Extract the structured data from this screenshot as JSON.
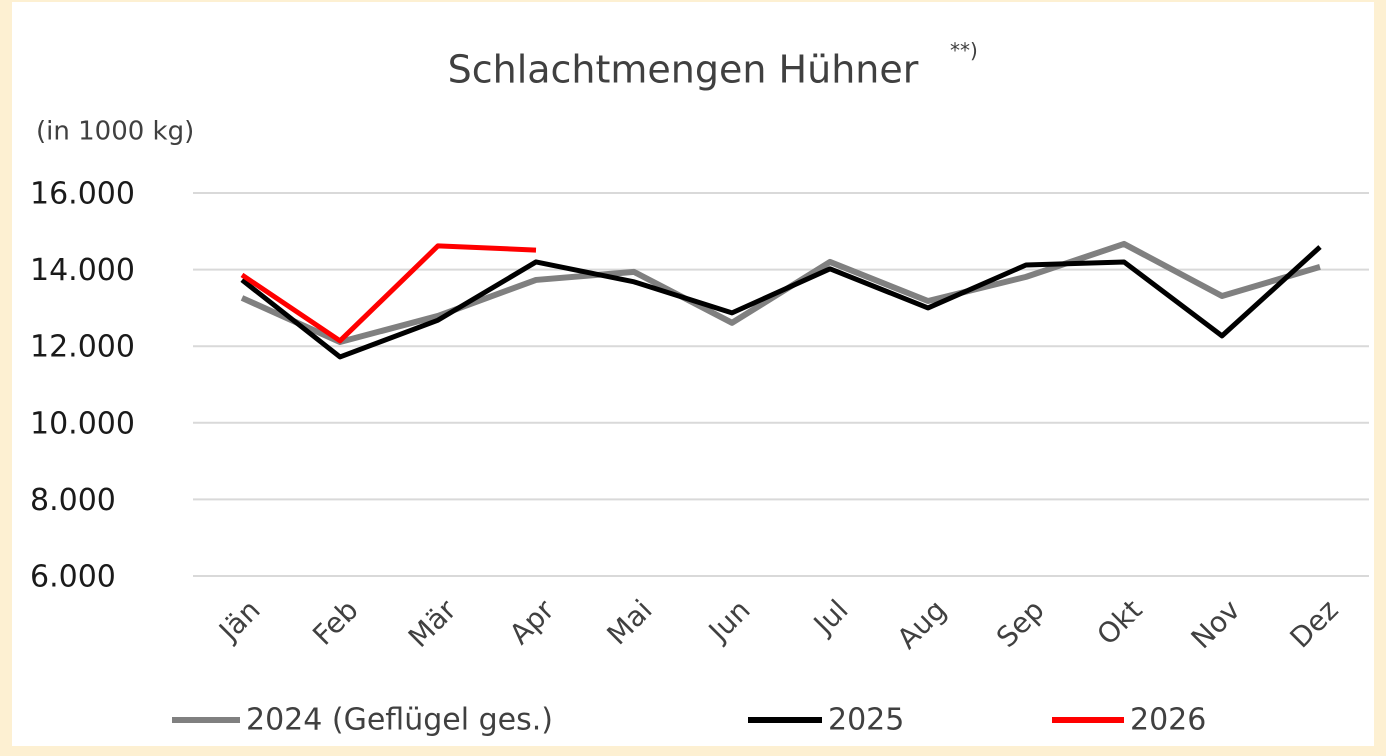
{
  "chart_data": {
    "type": "line",
    "title": "Schlachtmengen Hühner",
    "title_superscript": "**)",
    "subtitle": "(in 1000 kg)",
    "categories": [
      "Jän",
      "Feb",
      "Mär",
      "Apr",
      "Mai",
      "Jun",
      "Jul",
      "Aug",
      "Sep",
      "Okt",
      "Nov",
      "Dez"
    ],
    "series": [
      {
        "name": "2024 (Geflügel ges.)",
        "color": "#808080",
        "values": [
          13260,
          12110,
          12790,
          13730,
          13940,
          12610,
          14200,
          13180,
          13810,
          14670,
          13310,
          14070
        ]
      },
      {
        "name": "2025",
        "color": "#000000",
        "values": [
          13730,
          11720,
          12680,
          14200,
          13680,
          12870,
          14020,
          13000,
          14120,
          14200,
          12270,
          14590
        ]
      },
      {
        "name": "2026",
        "color": "#ff0000",
        "values": [
          13860,
          12140,
          14620,
          14510,
          null,
          null,
          null,
          null,
          null,
          null,
          null,
          null
        ]
      }
    ],
    "ylim": [
      6000,
      16000
    ],
    "yticks": [
      {
        "value": 6000,
        "label": "6.000"
      },
      {
        "value": 8000,
        "label": "8.000"
      },
      {
        "value": 10000,
        "label": "10.000"
      },
      {
        "value": 12000,
        "label": "12.000"
      },
      {
        "value": 14000,
        "label": "14.000"
      },
      {
        "value": 16000,
        "label": "16.000"
      }
    ],
    "grid": true,
    "legend": "bottom"
  }
}
